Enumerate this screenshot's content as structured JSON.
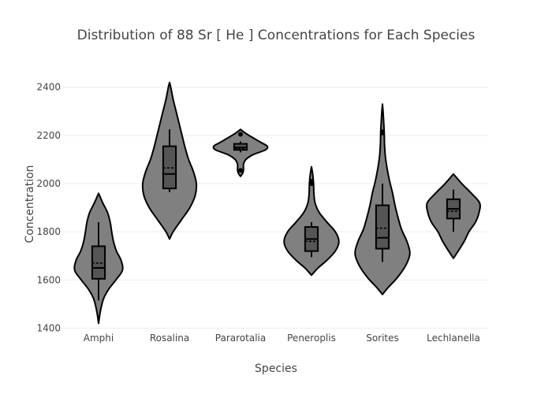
{
  "chart_data": {
    "type": "violin",
    "title": "Distribution of 88  Sr  [ He ]  Concentrations for Each Species",
    "xlabel": "Species",
    "ylabel": "Concentration",
    "ylim": [
      1395,
      2435
    ],
    "yticks": [
      1400,
      1600,
      1800,
      2000,
      2200,
      2400
    ],
    "categories": [
      "Amphi",
      "Rosalina",
      "Pararotalia",
      "Peneroplis",
      "Sorites",
      "Lechlanella"
    ],
    "grid": true,
    "legend": "none",
    "colors": {
      "violin_fill": "#808080",
      "box_fill": "#555555",
      "outline": "#000000",
      "grid": "#eeeeee",
      "text": "#444444"
    },
    "series": [
      {
        "category": "Amphi",
        "min": 1515,
        "q1": 1605,
        "median": 1650,
        "mean": 1670,
        "q3": 1740,
        "max": 1840,
        "kde_min": 1420,
        "kde_max": 1960,
        "profile": [
          [
            1420,
            0.0
          ],
          [
            1470,
            0.06
          ],
          [
            1520,
            0.16
          ],
          [
            1560,
            0.33
          ],
          [
            1600,
            0.58
          ],
          [
            1640,
            0.8
          ],
          [
            1680,
            0.76
          ],
          [
            1720,
            0.6
          ],
          [
            1760,
            0.5
          ],
          [
            1800,
            0.44
          ],
          [
            1840,
            0.39
          ],
          [
            1880,
            0.3
          ],
          [
            1920,
            0.14
          ],
          [
            1960,
            0.0
          ]
        ],
        "outliers": []
      },
      {
        "category": "Rosalina",
        "min": 1965,
        "q1": 1980,
        "median": 2040,
        "mean": 2065,
        "q3": 2155,
        "max": 2225,
        "kde_min": 1770,
        "kde_max": 2420,
        "profile": [
          [
            1770,
            0.0
          ],
          [
            1800,
            0.12
          ],
          [
            1850,
            0.4
          ],
          [
            1900,
            0.68
          ],
          [
            1950,
            0.86
          ],
          [
            2000,
            0.9
          ],
          [
            2050,
            0.8
          ],
          [
            2100,
            0.64
          ],
          [
            2150,
            0.52
          ],
          [
            2200,
            0.42
          ],
          [
            2250,
            0.32
          ],
          [
            2300,
            0.22
          ],
          [
            2350,
            0.12
          ],
          [
            2400,
            0.04
          ],
          [
            2420,
            0.0
          ]
        ],
        "outliers": []
      },
      {
        "category": "Pararotalia",
        "min": 2130,
        "q1": 2140,
        "median": 2150,
        "mean": 2145,
        "q3": 2165,
        "max": 2175,
        "kde_min": 2030,
        "kde_max": 2225,
        "profile": [
          [
            2030,
            0.0
          ],
          [
            2045,
            0.08
          ],
          [
            2060,
            0.1
          ],
          [
            2080,
            0.1
          ],
          [
            2100,
            0.18
          ],
          [
            2120,
            0.42
          ],
          [
            2140,
            0.84
          ],
          [
            2155,
            0.9
          ],
          [
            2170,
            0.7
          ],
          [
            2190,
            0.42
          ],
          [
            2210,
            0.16
          ],
          [
            2225,
            0.0
          ]
        ],
        "outliers": [
          2055,
          2205
        ]
      },
      {
        "category": "Peneroplis",
        "min": 1695,
        "q1": 1720,
        "median": 1770,
        "mean": 1760,
        "q3": 1820,
        "max": 1840,
        "kde_min": 1620,
        "kde_max": 2070,
        "profile": [
          [
            1620,
            0.0
          ],
          [
            1650,
            0.22
          ],
          [
            1680,
            0.5
          ],
          [
            1720,
            0.8
          ],
          [
            1760,
            0.92
          ],
          [
            1800,
            0.8
          ],
          [
            1840,
            0.52
          ],
          [
            1880,
            0.26
          ],
          [
            1920,
            0.12
          ],
          [
            1960,
            0.08
          ],
          [
            2000,
            0.07
          ],
          [
            2040,
            0.04
          ],
          [
            2070,
            0.0
          ]
        ],
        "outliers": [
          2000,
          2005,
          2010
        ]
      },
      {
        "category": "Sorites",
        "min": 1675,
        "q1": 1730,
        "median": 1775,
        "mean": 1815,
        "q3": 1910,
        "max": 2000,
        "kde_min": 1540,
        "kde_max": 2330,
        "profile": [
          [
            1540,
            0.0
          ],
          [
            1570,
            0.2
          ],
          [
            1610,
            0.5
          ],
          [
            1660,
            0.78
          ],
          [
            1710,
            0.92
          ],
          [
            1760,
            0.82
          ],
          [
            1810,
            0.64
          ],
          [
            1860,
            0.52
          ],
          [
            1910,
            0.42
          ],
          [
            1960,
            0.34
          ],
          [
            2010,
            0.24
          ],
          [
            2060,
            0.16
          ],
          [
            2110,
            0.1
          ],
          [
            2160,
            0.07
          ],
          [
            2210,
            0.06
          ],
          [
            2260,
            0.04
          ],
          [
            2300,
            0.02
          ],
          [
            2330,
            0.0
          ]
        ],
        "outliers": [
          2210,
          2215
        ]
      },
      {
        "category": "Lechlanella",
        "min": 1800,
        "q1": 1855,
        "median": 1895,
        "mean": 1885,
        "q3": 1935,
        "max": 1975,
        "kde_min": 1690,
        "kde_max": 2040,
        "profile": [
          [
            1690,
            0.0
          ],
          [
            1720,
            0.16
          ],
          [
            1760,
            0.36
          ],
          [
            1800,
            0.52
          ],
          [
            1840,
            0.74
          ],
          [
            1880,
            0.86
          ],
          [
            1920,
            0.88
          ],
          [
            1960,
            0.6
          ],
          [
            2000,
            0.28
          ],
          [
            2040,
            0.0
          ]
        ],
        "outliers": []
      }
    ]
  }
}
